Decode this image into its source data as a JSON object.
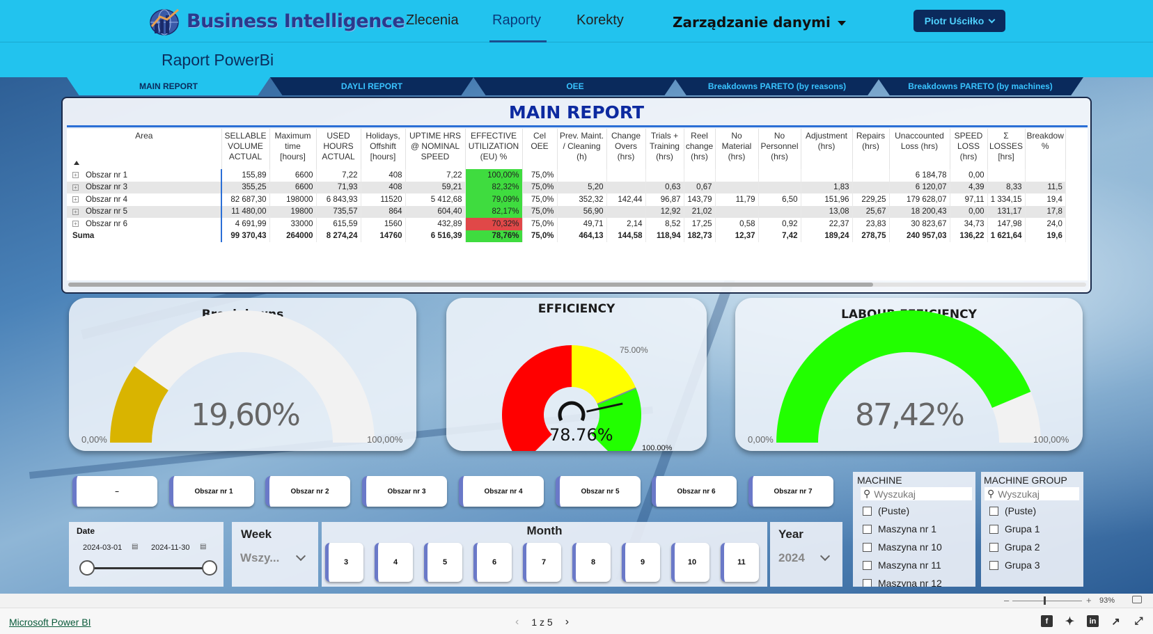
{
  "app": {
    "logo_text": "Business Intelligence",
    "nav": [
      "Zlecenia",
      "Raporty",
      "Korekty"
    ],
    "nav_dropdown": "Zarządzanie danymi",
    "user": "Piotr Uściłko",
    "page_title": "Raport PowerBi"
  },
  "tabs": [
    "MAIN REPORT",
    "DAYLI REPORT",
    "OEE",
    "Breakdowns PARETO (by reasons)",
    "Breakdowns PARETO (by machines)"
  ],
  "main_report": {
    "title": "MAIN REPORT",
    "headers": [
      "Area",
      "SELLABLE VOLUME ACTUAL",
      "Maximum time [hours]",
      "USED HOURS ACTUAL",
      "Holidays, Offshift [hours]",
      "UPTIME HRS @ NOMINAL SPEED",
      "EFFECTIVE UTILIZATION (EU) %",
      "Cel OEE",
      "Prev. Maint. / Cleaning (h)",
      "Change Overs (hrs)",
      "Trials + Training (hrs)",
      "Reel change (hrs)",
      "No Material (hrs)",
      "No Personnel (hrs)",
      "Adjustment (hrs)",
      "Repairs (hrs)",
      "Unaccounted Loss (hrs)",
      "SPEED LOSS (hrs)",
      "Σ LOSSES [hrs]",
      "Breakdow %"
    ],
    "rows": [
      [
        "Obszar nr 1",
        "155,89",
        "6600",
        "7,22",
        "408",
        "7,22",
        "100,00%",
        "75,0%",
        "",
        "",
        "",
        "",
        "",
        "",
        "",
        "",
        "6 184,78",
        "0,00",
        "",
        ""
      ],
      [
        "Obszar nr 3",
        "355,25",
        "6600",
        "71,93",
        "408",
        "59,21",
        "82,32%",
        "75,0%",
        "5,20",
        "",
        "0,63",
        "0,67",
        "",
        "",
        "1,83",
        "",
        "6 120,07",
        "4,39",
        "8,33",
        "11,5"
      ],
      [
        "Obszar nr 4",
        "82 687,30",
        "198000",
        "6 843,93",
        "11520",
        "5 412,68",
        "79,09%",
        "75,0%",
        "352,32",
        "142,44",
        "96,87",
        "143,79",
        "11,79",
        "6,50",
        "151,96",
        "229,25",
        "179 628,07",
        "97,11",
        "1 334,15",
        "19,4"
      ],
      [
        "Obszar nr 5",
        "11 480,00",
        "19800",
        "735,57",
        "864",
        "604,40",
        "82,17%",
        "75,0%",
        "56,90",
        "",
        "12,92",
        "21,02",
        "",
        "",
        "13,08",
        "25,67",
        "18 200,43",
        "0,00",
        "131,17",
        "17,8"
      ],
      [
        "Obszar nr 6",
        "4 691,99",
        "33000",
        "615,59",
        "1560",
        "432,89",
        "70,32%",
        "75,0%",
        "49,71",
        "2,14",
        "8,52",
        "17,25",
        "0,58",
        "0,92",
        "22,37",
        "23,83",
        "30 823,67",
        "34,73",
        "147,98",
        "24,0"
      ]
    ],
    "row_eu_status": [
      "good",
      "good",
      "good",
      "good",
      "bad"
    ],
    "total": [
      "Suma",
      "99 370,43",
      "264000",
      "8 274,24",
      "14760",
      "6 516,39",
      "78,76%",
      "75,0%",
      "464,13",
      "144,58",
      "118,94",
      "182,73",
      "12,37",
      "7,42",
      "189,24",
      "278,75",
      "240 957,03",
      "136,22",
      "1 621,64",
      "19,6"
    ]
  },
  "gauges": {
    "breakdowns": {
      "title": "Breakdowns",
      "value": 0.196,
      "value_label": "19,60%",
      "min_label": "0,00%",
      "max_label": "100,00%",
      "color": "#d9b400"
    },
    "efficiency": {
      "title": "EFFICIENCY",
      "value": 0.7876,
      "value_label": "78.76%",
      "target": 0.75,
      "target_label": "75.00%",
      "max_label": "100.00%",
      "bands": [
        {
          "to": 0.5,
          "color": "#ff0000"
        },
        {
          "to": 0.75,
          "color": "#ffff00"
        },
        {
          "to": 1.0,
          "color": "#22ff00"
        }
      ]
    },
    "labour": {
      "title": "LABOUR EFFICIENCY",
      "value": 0.8742,
      "value_label": "87,42%",
      "min_label": "0,00%",
      "max_label": "100,00%",
      "color": "#22ff00"
    }
  },
  "areas": [
    "–",
    "Obszar nr 1",
    "Obszar nr 2",
    "Obszar nr 3",
    "Obszar nr 4",
    "Obszar nr 5",
    "Obszar nr 6",
    "Obszar nr 7"
  ],
  "date_slicer": {
    "label": "Date",
    "from": "2024-03-01",
    "to": "2024-11-30"
  },
  "week_slicer": {
    "label": "Week",
    "value": "Wszy..."
  },
  "month_slicer": {
    "label": "Month",
    "values": [
      "3",
      "4",
      "5",
      "6",
      "7",
      "8",
      "9",
      "10",
      "11"
    ]
  },
  "year_slicer": {
    "label": "Year",
    "value": "2024"
  },
  "machine_slicer": {
    "label": "MACHINE",
    "search_placeholder": "Wyszukaj",
    "options": [
      "(Puste)",
      "Maszyna nr 1",
      "Maszyna nr 10",
      "Maszyna nr 11",
      "Maszyna nr 12"
    ]
  },
  "group_slicer": {
    "label": "MACHINE GROUP",
    "search_placeholder": "Wyszukaj",
    "options": [
      "(Puste)",
      "Grupa 1",
      "Grupa 2",
      "Grupa 3"
    ]
  },
  "zoom": {
    "value": "93%"
  },
  "footer": {
    "brand": "Microsoft Power BI",
    "page": "1 z 5"
  }
}
